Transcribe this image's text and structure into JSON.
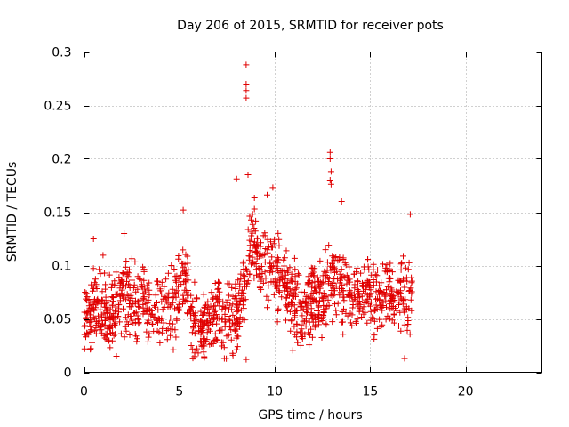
{
  "chart_data": {
    "type": "scatter",
    "title": "Day 206 of 2015, SRMTID for receiver pots",
    "xlabel": "GPS time / hours",
    "ylabel": "SRMTID / TECUs",
    "xlim": [
      0,
      24
    ],
    "ylim": [
      0,
      0.3
    ],
    "x_ticks": [
      "0",
      "5",
      "10",
      "15",
      "20"
    ],
    "x_tick_values": [
      0,
      5,
      10,
      15,
      20
    ],
    "y_ticks": [
      "0",
      "0.05",
      "0.1",
      "0.15",
      "0.2",
      "0.25",
      "0.3"
    ],
    "y_tick_values": [
      0,
      0.05,
      0.1,
      0.15,
      0.2,
      0.25,
      0.3
    ],
    "grid": true,
    "marker": "+",
    "color": "#e00000",
    "x_range_of_data": [
      0,
      17.2
    ],
    "profile": [
      [
        0.0,
        0.055
      ],
      [
        0.5,
        0.065
      ],
      [
        1.0,
        0.06
      ],
      [
        1.5,
        0.055
      ],
      [
        2.0,
        0.07
      ],
      [
        2.5,
        0.065
      ],
      [
        3.0,
        0.06
      ],
      [
        3.5,
        0.062
      ],
      [
        4.0,
        0.065
      ],
      [
        4.5,
        0.058
      ],
      [
        5.0,
        0.075
      ],
      [
        5.3,
        0.09
      ],
      [
        5.6,
        0.05
      ],
      [
        6.0,
        0.035
      ],
      [
        6.5,
        0.04
      ],
      [
        7.0,
        0.06
      ],
      [
        7.5,
        0.05
      ],
      [
        8.0,
        0.055
      ],
      [
        8.5,
        0.085
      ],
      [
        8.8,
        0.13
      ],
      [
        9.2,
        0.1
      ],
      [
        9.6,
        0.11
      ],
      [
        10.0,
        0.09
      ],
      [
        10.5,
        0.095
      ],
      [
        11.0,
        0.06
      ],
      [
        11.5,
        0.055
      ],
      [
        12.0,
        0.07
      ],
      [
        12.5,
        0.065
      ],
      [
        13.0,
        0.09
      ],
      [
        13.5,
        0.08
      ],
      [
        14.0,
        0.075
      ],
      [
        14.5,
        0.07
      ],
      [
        15.0,
        0.075
      ],
      [
        15.5,
        0.07
      ],
      [
        16.0,
        0.075
      ],
      [
        16.5,
        0.07
      ],
      [
        17.0,
        0.075
      ],
      [
        17.2,
        0.07
      ]
    ],
    "outliers": [
      {
        "x": 8.5,
        "y": 0.288
      },
      {
        "x": 8.5,
        "y": 0.27
      },
      {
        "x": 8.5,
        "y": 0.264
      },
      {
        "x": 8.5,
        "y": 0.257
      },
      {
        "x": 8.6,
        "y": 0.185
      },
      {
        "x": 8.0,
        "y": 0.181
      },
      {
        "x": 12.9,
        "y": 0.206
      },
      {
        "x": 12.9,
        "y": 0.2
      },
      {
        "x": 12.95,
        "y": 0.188
      },
      {
        "x": 12.9,
        "y": 0.18
      },
      {
        "x": 12.95,
        "y": 0.176
      },
      {
        "x": 13.5,
        "y": 0.16
      },
      {
        "x": 9.9,
        "y": 0.173
      },
      {
        "x": 9.6,
        "y": 0.166
      },
      {
        "x": 5.2,
        "y": 0.152
      },
      {
        "x": 17.1,
        "y": 0.148
      },
      {
        "x": 2.1,
        "y": 0.13
      },
      {
        "x": 0.5,
        "y": 0.125
      },
      {
        "x": 8.5,
        "y": 0.012
      },
      {
        "x": 16.8,
        "y": 0.013
      },
      {
        "x": 1.7,
        "y": 0.015
      }
    ]
  }
}
